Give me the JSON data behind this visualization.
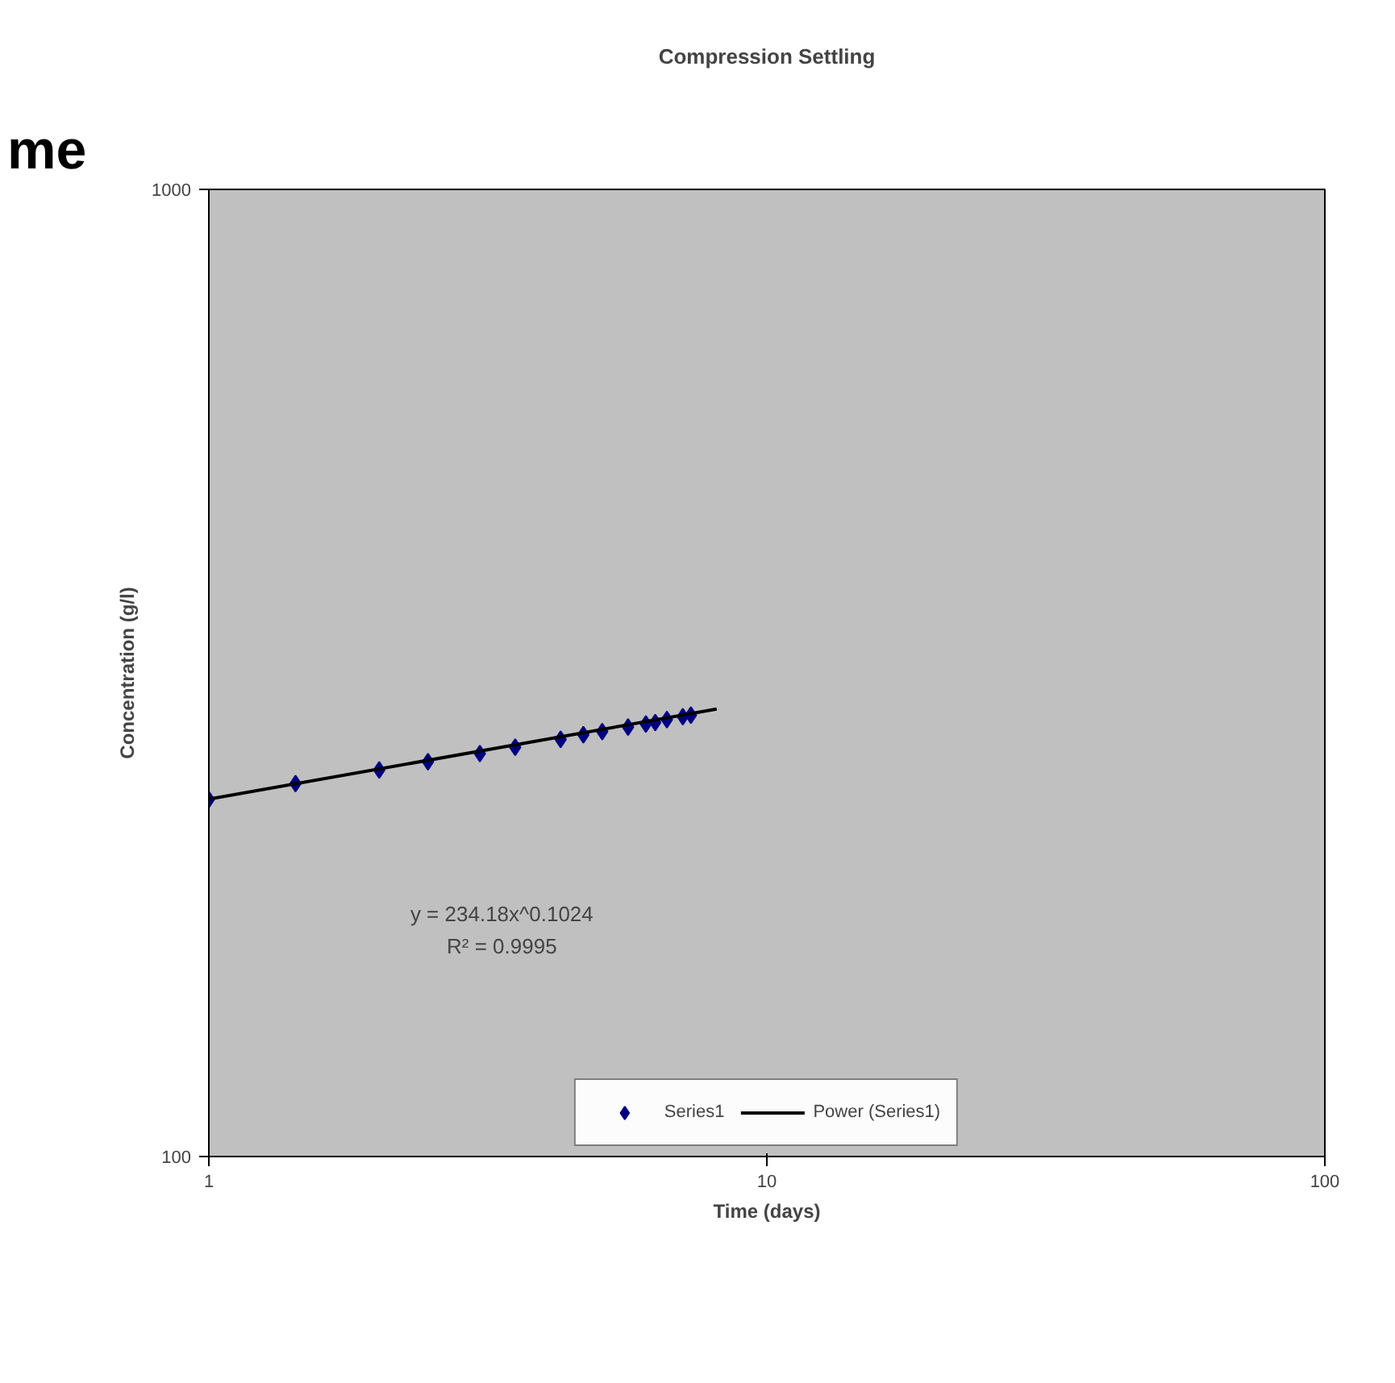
{
  "chart_data": {
    "type": "scatter",
    "title": "Compression Settling",
    "xlabel": "Time (days)",
    "ylabel": "Concentration (g/l)",
    "log": "xy",
    "xlim": [
      1,
      100
    ],
    "ylim": [
      100,
      1000
    ],
    "xticks": [
      1,
      10,
      100
    ],
    "yticks": [
      100,
      1000
    ],
    "grid": false,
    "legend": "bottom",
    "marker": "diamond",
    "series": [
      {
        "name": "Series1",
        "color": "#000080",
        "x": [
          1.0,
          1.43,
          2.02,
          2.47,
          3.06,
          3.54,
          4.27,
          4.69,
          5.07,
          5.64,
          6.07,
          6.31,
          6.62,
          7.07,
          7.31
        ],
        "values": [
          234,
          243,
          251,
          256,
          261,
          265,
          270,
          273,
          275,
          278,
          280,
          281,
          283,
          285,
          286
        ]
      },
      {
        "name": "Power (Series1)",
        "type": "line",
        "color": "#000000",
        "marker": "none",
        "line_style": "solid",
        "x": [
          1,
          8.13
        ],
        "values": [
          234.18,
          290.2
        ]
      }
    ],
    "annotations": [
      "me",
      "y = 234.18x^0.1024",
      "R² = 0.9995"
    ]
  }
}
